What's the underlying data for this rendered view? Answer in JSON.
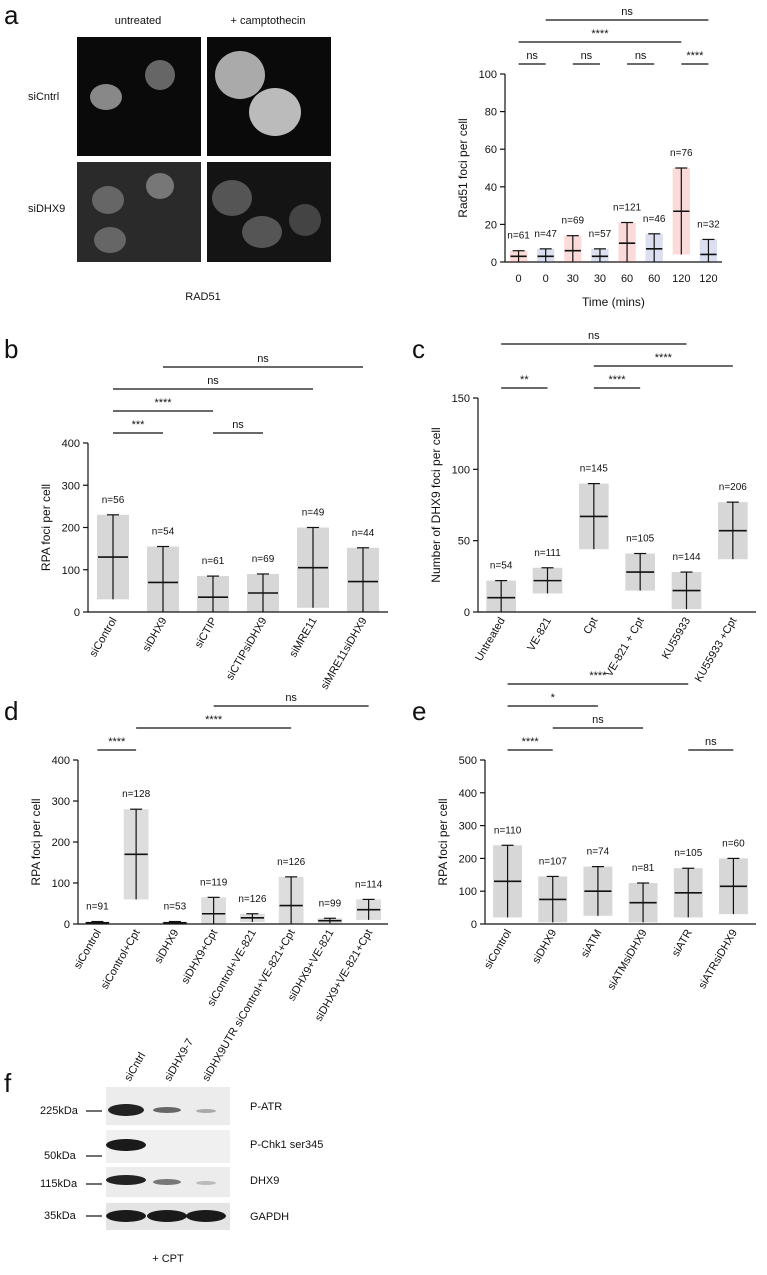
{
  "panel_labels": [
    "a",
    "b",
    "c",
    "d",
    "e",
    "f"
  ],
  "microscopy": {
    "columns": [
      "untreated",
      "+ camptothecin"
    ],
    "rows": [
      "siCntrl",
      "siDHX9"
    ],
    "caption": "RAD51"
  },
  "chart_data": [
    {
      "type": "dotplot",
      "ylabel": "Rad51 foci per cell",
      "xlabel": "Time (mins)",
      "categories": [
        "0",
        "0",
        "30",
        "30",
        "60",
        "60",
        "120",
        "120"
      ],
      "values": [
        3,
        3,
        6,
        3,
        10,
        7,
        27,
        4
      ],
      "errors": [
        3,
        4,
        8,
        4,
        11,
        8,
        23,
        8
      ],
      "n_labels": [
        "n=61",
        "n=47",
        "n=69",
        "n=57",
        "n=121",
        "n=46",
        "n=76",
        "n=32"
      ],
      "colors": [
        "#e8352f",
        "#3a4fa8",
        "#e8352f",
        "#3a4fa8",
        "#e8352f",
        "#3a4fa8",
        "#e8352f",
        "#3a4fa8"
      ],
      "ylim": [
        0,
        100
      ],
      "yticks": [
        0,
        20,
        40,
        60,
        80,
        100
      ],
      "brackets": [
        {
          "from": 0,
          "to": 1,
          "label": "ns"
        },
        {
          "from": 2,
          "to": 3,
          "label": "ns"
        },
        {
          "from": 4,
          "to": 5,
          "label": "ns"
        },
        {
          "from": 6,
          "to": 7,
          "label": "****"
        },
        {
          "from": 0,
          "to": 6,
          "label": "****"
        },
        {
          "from": 1,
          "to": 7,
          "label": "ns"
        }
      ]
    },
    {
      "type": "dotplot",
      "ylabel": "RPA foci per cell",
      "categories": [
        "siControl",
        "siDHX9",
        "siCTIP",
        "siCTIPsiDHX9",
        "siMRE11",
        "siMRE11siDHX9"
      ],
      "values": [
        130,
        70,
        35,
        45,
        105,
        72
      ],
      "errors": [
        100,
        85,
        50,
        45,
        95,
        80
      ],
      "n_labels": [
        "n=56",
        "n=54",
        "n=61",
        "n=69",
        "n=49",
        "n=44"
      ],
      "color": "#222222",
      "ylim": [
        0,
        400
      ],
      "yticks": [
        0,
        100,
        200,
        300,
        400
      ],
      "brackets": [
        {
          "from": 0,
          "to": 1,
          "label": "***"
        },
        {
          "from": 2,
          "to": 3,
          "label": "ns"
        },
        {
          "from": 0,
          "to": 2,
          "label": "****"
        },
        {
          "from": 0,
          "to": 4,
          "label": "ns"
        },
        {
          "from": 1,
          "to": 5,
          "label": "ns"
        }
      ]
    },
    {
      "type": "dotplot",
      "ylabel": "Number of DHX9 foci per cell",
      "categories": [
        "Untreated",
        "VE-821",
        "Cpt",
        "VE-821 + Cpt",
        "KU55933",
        "KU55933 +Cpt"
      ],
      "values": [
        10,
        22,
        67,
        28,
        15,
        57
      ],
      "errors": [
        12,
        9,
        23,
        13,
        13,
        20
      ],
      "n_labels": [
        "n=54",
        "n=111",
        "n=145",
        "n=105",
        "n=144",
        "n=206"
      ],
      "color": "#222222",
      "ylim": [
        0,
        150
      ],
      "yticks": [
        0,
        50,
        100,
        150
      ],
      "brackets": [
        {
          "from": 0,
          "to": 1,
          "label": "**"
        },
        {
          "from": 2,
          "to": 3,
          "label": "****"
        },
        {
          "from": 2,
          "to": 5,
          "label": "****"
        },
        {
          "from": 0,
          "to": 4,
          "label": "ns"
        }
      ]
    },
    {
      "type": "dotplot",
      "ylabel": "RPA foci per cell",
      "categories": [
        "siControl",
        "siControl+Cpt",
        "siDHX9",
        "siDHX9+Cpt",
        "siControl+VE-821",
        "siControl+VE-821+Cpt",
        "siDHX9+VE-821",
        "siDHX9+VE-821+Cpt"
      ],
      "values": [
        3,
        170,
        3,
        25,
        15,
        45,
        8,
        35
      ],
      "errors": [
        3,
        110,
        3,
        40,
        10,
        70,
        6,
        25
      ],
      "n_labels": [
        "n=91",
        "n=128",
        "n=53",
        "n=119",
        "n=126",
        "n=126",
        "n=99",
        "n=114"
      ],
      "color": "#444444",
      "ylim": [
        0,
        400
      ],
      "yticks": [
        0,
        100,
        200,
        300,
        400
      ],
      "brackets": [
        {
          "from": 0,
          "to": 1,
          "label": "****"
        },
        {
          "from": 1,
          "to": 5,
          "label": "****"
        },
        {
          "from": 3,
          "to": 7,
          "label": "ns"
        }
      ]
    },
    {
      "type": "dotplot",
      "ylabel": "RPA foci per cell",
      "categories": [
        "siControl",
        "siDHX9",
        "siATM",
        "siATMsiDHX9",
        "siATR",
        "siATRsiDHX9"
      ],
      "values": [
        130,
        75,
        100,
        65,
        95,
        115
      ],
      "errors": [
        110,
        70,
        75,
        60,
        75,
        85
      ],
      "n_labels": [
        "n=110",
        "n=107",
        "n=74",
        "n=81",
        "n=105",
        "n=60"
      ],
      "color": "#222222",
      "ylim": [
        0,
        500
      ],
      "yticks": [
        0,
        100,
        200,
        300,
        400,
        500
      ],
      "brackets": [
        {
          "from": 0,
          "to": 1,
          "label": "****"
        },
        {
          "from": 1,
          "to": 3,
          "label": "ns"
        },
        {
          "from": 0,
          "to": 2,
          "label": "*"
        },
        {
          "from": 4,
          "to": 5,
          "label": "ns"
        },
        {
          "from": 0,
          "to": 4,
          "label": "****"
        }
      ]
    }
  ],
  "blot": {
    "lanes": [
      "siCntrl",
      "siDHX9-7",
      "siDHX9UTR"
    ],
    "markers": [
      "225kDa",
      "50kDa",
      "115kDa",
      "35kDa"
    ],
    "proteins": [
      "P-ATR",
      "P-Chk1 ser345",
      "DHX9",
      "GAPDH"
    ],
    "treatment": "+ CPT"
  }
}
